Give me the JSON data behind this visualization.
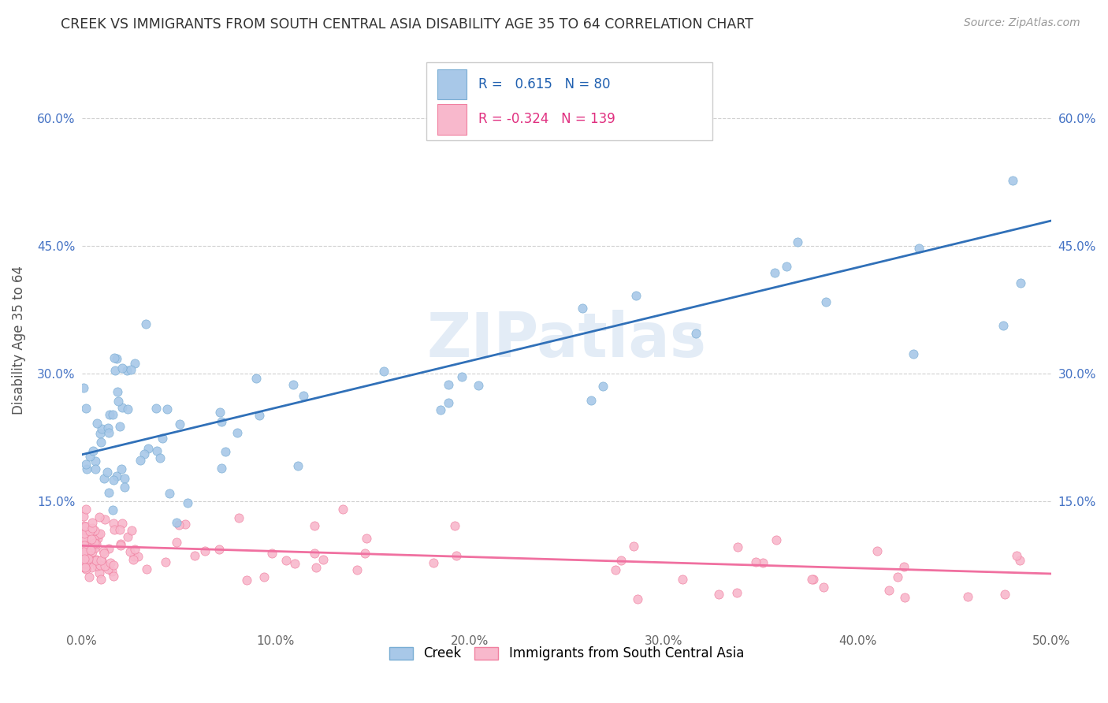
{
  "title": "CREEK VS IMMIGRANTS FROM SOUTH CENTRAL ASIA DISABILITY AGE 35 TO 64 CORRELATION CHART",
  "source": "Source: ZipAtlas.com",
  "ylabel": "Disability Age 35 to 64",
  "xlim": [
    0.0,
    0.5
  ],
  "ylim": [
    0.0,
    0.68
  ],
  "xtick_labels": [
    "0.0%",
    "10.0%",
    "20.0%",
    "30.0%",
    "40.0%",
    "50.0%"
  ],
  "xtick_vals": [
    0.0,
    0.1,
    0.2,
    0.3,
    0.4,
    0.5
  ],
  "ytick_labels": [
    "15.0%",
    "30.0%",
    "45.0%",
    "60.0%"
  ],
  "ytick_vals": [
    0.15,
    0.3,
    0.45,
    0.6
  ],
  "creek_color": "#a8c8e8",
  "creek_edge_color": "#7aaed4",
  "immigrants_color": "#f8b8cc",
  "immigrants_edge_color": "#f080a0",
  "creek_line_color": "#3070b8",
  "immigrants_line_color": "#f070a0",
  "creek_line_start_y": 0.205,
  "creek_line_end_y": 0.48,
  "imm_line_start_y": 0.098,
  "imm_line_end_y": 0.065,
  "R_creek": 0.615,
  "N_creek": 80,
  "R_immigrants": -0.324,
  "N_immigrants": 139,
  "watermark": "ZIPatlas",
  "background_color": "#ffffff",
  "grid_color": "#d0d0d0"
}
